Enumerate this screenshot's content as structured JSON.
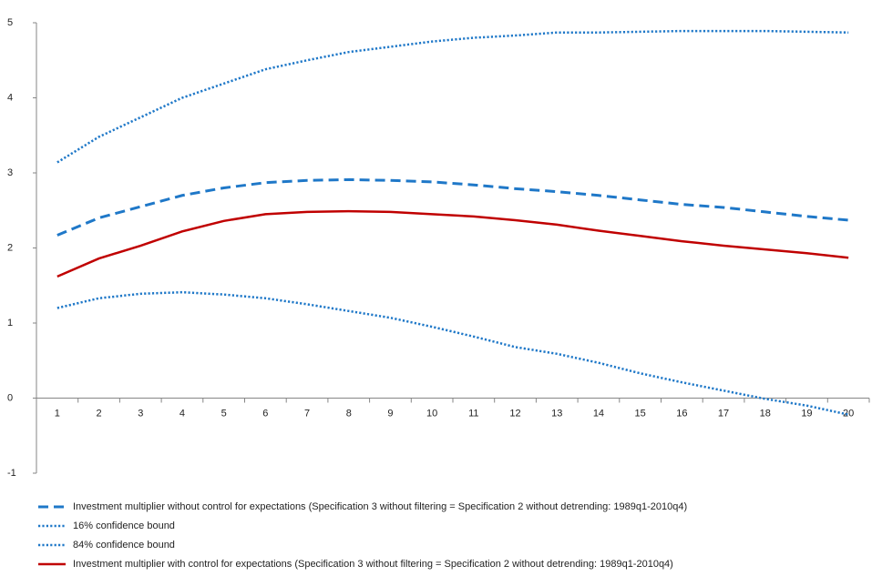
{
  "chart_data": {
    "type": "line",
    "categories": [
      "1",
      "2",
      "3",
      "4",
      "5",
      "6",
      "7",
      "8",
      "9",
      "10",
      "11",
      "12",
      "13",
      "14",
      "15",
      "16",
      "17",
      "18",
      "19",
      "20"
    ],
    "series": [
      {
        "name": "Investment multiplier without control for expectations (Specification 3 without filtering = Specification 2 without detrending: 1989q1-2010q4)",
        "color": "#1f78c8",
        "dash": "dashed",
        "values": [
          2.17,
          2.4,
          2.55,
          2.7,
          2.8,
          2.87,
          2.9,
          2.91,
          2.9,
          2.88,
          2.84,
          2.79,
          2.75,
          2.7,
          2.64,
          2.58,
          2.54,
          2.48,
          2.42,
          2.37
        ]
      },
      {
        "name": "16% confidence bound",
        "color": "#1f78c8",
        "dash": "dotted",
        "values": [
          1.2,
          1.33,
          1.39,
          1.41,
          1.38,
          1.33,
          1.25,
          1.16,
          1.07,
          0.95,
          0.82,
          0.68,
          0.59,
          0.47,
          0.33,
          0.21,
          0.1,
          -0.01,
          -0.1,
          -0.22
        ]
      },
      {
        "name": "84% confidence bound",
        "color": "#1f78c8",
        "dash": "dotted",
        "values": [
          3.14,
          3.48,
          3.74,
          4.0,
          4.19,
          4.38,
          4.5,
          4.61,
          4.68,
          4.75,
          4.8,
          4.83,
          4.87,
          4.87,
          4.88,
          4.89,
          4.89,
          4.89,
          4.88,
          4.87
        ]
      },
      {
        "name": "Investment multiplier with control for expectations (Specification 3 without filtering = Specification 2 without detrending: 1989q1-2010q4)",
        "color": "#c00000",
        "dash": "solid",
        "values": [
          1.62,
          1.86,
          2.03,
          2.22,
          2.36,
          2.45,
          2.48,
          2.49,
          2.48,
          2.45,
          2.42,
          2.37,
          2.31,
          2.23,
          2.16,
          2.09,
          2.03,
          1.98,
          1.93,
          1.87
        ]
      }
    ],
    "ylim": [
      -1,
      5
    ],
    "yticks": [
      -1,
      0,
      1,
      2,
      3,
      4,
      5
    ],
    "grid": false,
    "legend": "bottom"
  }
}
